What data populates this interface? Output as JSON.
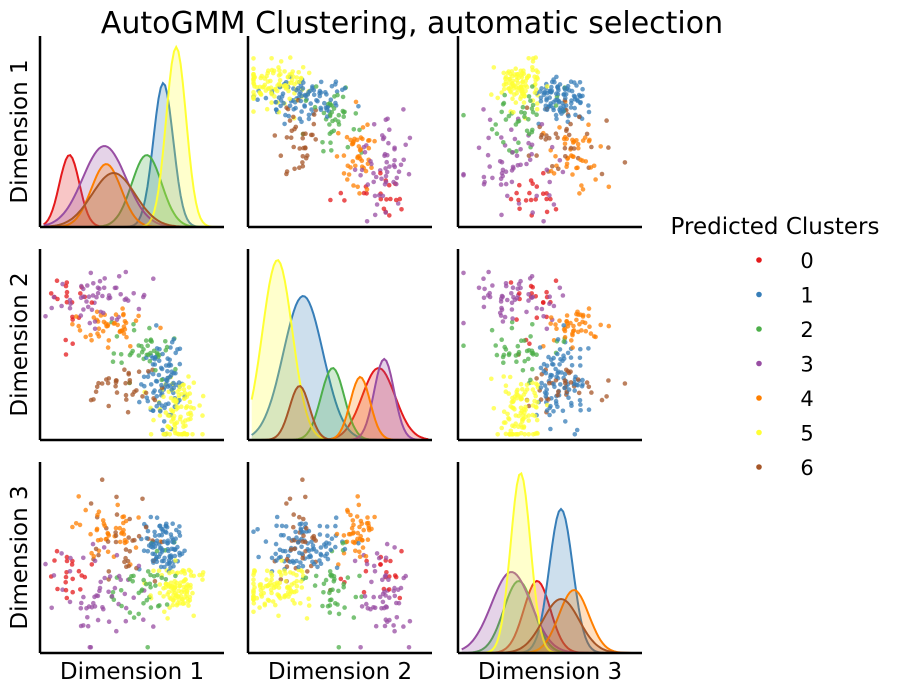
{
  "figure": {
    "title": "AutoGMM Clustering, automatic selection",
    "variables": [
      "Dimension 1",
      "Dimension 2",
      "Dimension 3"
    ],
    "legend_title": "Predicted Clusters",
    "legend_position": "right"
  },
  "clusters": [
    {
      "label": "0",
      "color": "#e41a1c"
    },
    {
      "label": "1",
      "color": "#377eb8"
    },
    {
      "label": "2",
      "color": "#4daf4a"
    },
    {
      "label": "3",
      "color": "#984ea3"
    },
    {
      "label": "4",
      "color": "#ff7f00"
    },
    {
      "label": "5",
      "color": "#ffff33"
    },
    {
      "label": "6",
      "color": "#a65628"
    }
  ],
  "chart_data": {
    "type": "scatter",
    "kind": "pairplot",
    "title": "AutoGMM Clustering, automatic selection",
    "diagonal": "kde",
    "ticks": "none",
    "variables": [
      "Dimension 1",
      "Dimension 2",
      "Dimension 3"
    ],
    "axis_range": [
      0,
      1
    ],
    "series": [
      {
        "name": "0",
        "n": 20,
        "mean": [
          0.16,
          0.71,
          0.43
        ],
        "sd": [
          0.06,
          0.1,
          0.08
        ],
        "kde_scale": 0.4
      },
      {
        "name": "1",
        "n": 95,
        "mean": [
          0.67,
          0.3,
          0.56
        ],
        "sd": [
          0.06,
          0.12,
          0.07
        ],
        "kde_scale": 0.8
      },
      {
        "name": "2",
        "n": 40,
        "mean": [
          0.58,
          0.46,
          0.33
        ],
        "sd": [
          0.09,
          0.07,
          0.09
        ],
        "kde_scale": 0.4
      },
      {
        "name": "3",
        "n": 55,
        "mean": [
          0.35,
          0.74,
          0.29
        ],
        "sd": [
          0.13,
          0.06,
          0.12
        ],
        "kde_scale": 0.45
      },
      {
        "name": "4",
        "n": 45,
        "mean": [
          0.36,
          0.61,
          0.63
        ],
        "sd": [
          0.09,
          0.06,
          0.09
        ],
        "kde_scale": 0.35
      },
      {
        "name": "5",
        "n": 100,
        "mean": [
          0.74,
          0.16,
          0.34
        ],
        "sd": [
          0.06,
          0.09,
          0.06
        ],
        "kde_scale": 1.0
      },
      {
        "name": "6",
        "n": 35,
        "mean": [
          0.4,
          0.28,
          0.56
        ],
        "sd": [
          0.13,
          0.06,
          0.11
        ],
        "kde_scale": 0.3
      }
    ]
  }
}
